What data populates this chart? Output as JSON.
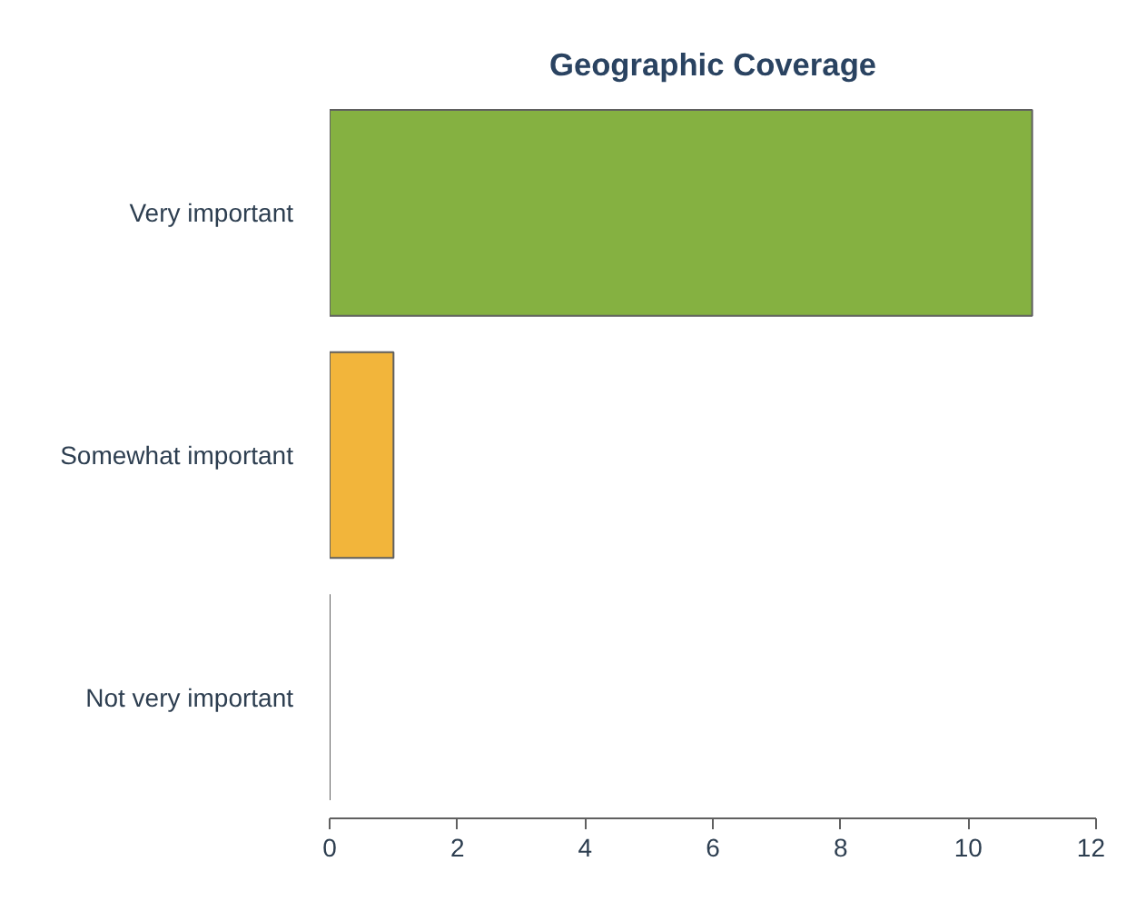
{
  "chart_data": {
    "type": "bar",
    "orientation": "horizontal",
    "title": "Geographic Coverage",
    "categories": [
      "Very important",
      "Somewhat important",
      "Not very important"
    ],
    "values": [
      11,
      1,
      0
    ],
    "colors": [
      "#85b141",
      "#f2b53b",
      "#a0a0a0"
    ],
    "xlim": [
      0,
      12
    ],
    "xticks": [
      0,
      2,
      4,
      6,
      8,
      10,
      12
    ],
    "grid": false
  }
}
